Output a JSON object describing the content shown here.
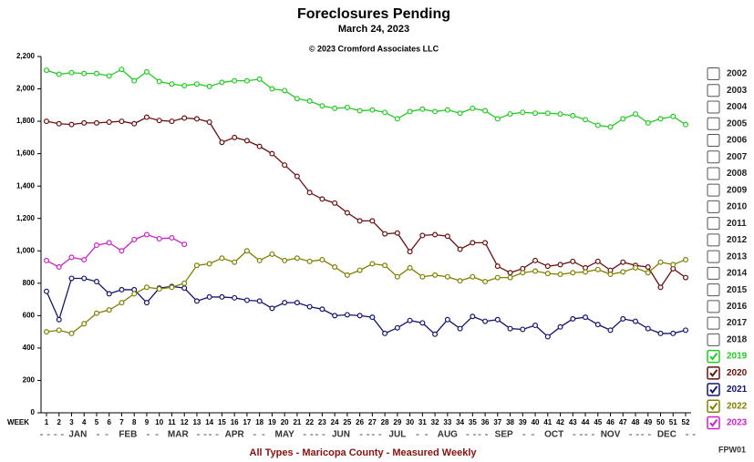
{
  "chart_data": {
    "type": "line",
    "title": "Foreclosures Pending",
    "subtitle": "March 24, 2023",
    "copyright": "© 2023 Cromford Associates LLC",
    "x_label": "WEEK",
    "footer": "All Types - Maricopa County - Measured Weekly",
    "code": "FPW01",
    "months": [
      "JAN",
      "FEB",
      "MAR",
      "APR",
      "MAY",
      "JUN",
      "JUL",
      "AUG",
      "SEP",
      "OCT",
      "NOV",
      "DEC"
    ],
    "x": [
      1,
      2,
      3,
      4,
      5,
      6,
      7,
      8,
      9,
      10,
      11,
      12,
      13,
      14,
      15,
      16,
      17,
      18,
      19,
      20,
      21,
      22,
      23,
      24,
      25,
      26,
      27,
      28,
      29,
      30,
      31,
      32,
      33,
      34,
      35,
      36,
      37,
      38,
      39,
      40,
      41,
      42,
      43,
      44,
      45,
      46,
      47,
      48,
      49,
      50,
      51,
      52
    ],
    "xticks": [
      1,
      2,
      3,
      4,
      5,
      6,
      7,
      8,
      9,
      10,
      11,
      12,
      13,
      14,
      15,
      16,
      17,
      18,
      19,
      20,
      21,
      22,
      23,
      24,
      25,
      26,
      27,
      28,
      29,
      30,
      31,
      32,
      33,
      34,
      35,
      36,
      37,
      38,
      39,
      40,
      41,
      42,
      43,
      44,
      45,
      46,
      47,
      48,
      49,
      50,
      51,
      52
    ],
    "xlim": [
      0.5,
      52
    ],
    "ylim": [
      0,
      2200
    ],
    "yticks": [
      0,
      200,
      400,
      600,
      800,
      {
        "value": 1000,
        "label": "1,000"
      },
      {
        "value": 1200,
        "label": "1,200"
      },
      {
        "value": 1400,
        "label": "1,400"
      },
      {
        "value": 1600,
        "label": "1,600"
      },
      {
        "value": 1800,
        "label": "1,800"
      },
      {
        "value": 2000,
        "label": "2,000"
      },
      {
        "value": 2200,
        "label": "2,200"
      }
    ],
    "grid": false,
    "legend_unchecked": [
      "2002",
      "2003",
      "2004",
      "2005",
      "2006",
      "2007",
      "2008",
      "2009",
      "2010",
      "2011",
      "2012",
      "2013",
      "2014",
      "2015",
      "2016",
      "2017",
      "2018"
    ],
    "series": [
      {
        "name": "2019",
        "color": "#22cc22",
        "values": [
          2115,
          2090,
          2100,
          2095,
          2095,
          2080,
          2120,
          2050,
          2105,
          2045,
          2030,
          2020,
          2030,
          2015,
          2040,
          2050,
          2050,
          2060,
          2000,
          1990,
          1940,
          1925,
          1895,
          1880,
          1885,
          1865,
          1870,
          1855,
          1815,
          1860,
          1875,
          1860,
          1870,
          1850,
          1880,
          1865,
          1815,
          1845,
          1855,
          1850,
          1850,
          1845,
          1835,
          1810,
          1775,
          1765,
          1815,
          1845,
          1790,
          1815,
          1830,
          1780
        ]
      },
      {
        "name": "2020",
        "color": "#6b0f0f",
        "values": [
          1800,
          1785,
          1780,
          1790,
          1790,
          1795,
          1800,
          1785,
          1825,
          1805,
          1800,
          1820,
          1815,
          1795,
          1670,
          1700,
          1680,
          1645,
          1600,
          1530,
          1460,
          1360,
          1320,
          1295,
          1235,
          1185,
          1185,
          1105,
          1110,
          995,
          1095,
          1100,
          1090,
          1010,
          1050,
          1050,
          905,
          865,
          890,
          940,
          905,
          915,
          935,
          895,
          935,
          880,
          930,
          910,
          900,
          775,
          890,
          835
        ]
      },
      {
        "name": "2021",
        "color": "#141470",
        "values": [
          750,
          575,
          830,
          830,
          810,
          735,
          760,
          760,
          680,
          770,
          780,
          770,
          690,
          715,
          715,
          710,
          695,
          690,
          645,
          680,
          680,
          655,
          640,
          600,
          605,
          600,
          590,
          490,
          525,
          570,
          555,
          485,
          575,
          520,
          595,
          565,
          575,
          520,
          515,
          540,
          470,
          530,
          580,
          590,
          545,
          510,
          580,
          565,
          520,
          490,
          490,
          510
        ]
      },
      {
        "name": "2022",
        "color": "#808000",
        "values": [
          500,
          510,
          490,
          550,
          615,
          635,
          680,
          735,
          775,
          765,
          775,
          800,
          910,
          920,
          955,
          930,
          1000,
          940,
          980,
          940,
          955,
          935,
          945,
          900,
          850,
          880,
          920,
          910,
          840,
          895,
          840,
          850,
          840,
          815,
          840,
          810,
          835,
          835,
          865,
          875,
          860,
          855,
          865,
          870,
          885,
          855,
          870,
          895,
          865,
          930,
          915,
          945
        ]
      },
      {
        "name": "2023",
        "color": "#cc22cc",
        "values": [
          940,
          900,
          960,
          945,
          1035,
          1050,
          1000,
          1070,
          1100,
          1075,
          1080,
          1040,
          null,
          null,
          null,
          null,
          null,
          null,
          null,
          null,
          null,
          null,
          null,
          null,
          null,
          null,
          null,
          null,
          null,
          null,
          null,
          null,
          null,
          null,
          null,
          null,
          null,
          null,
          null,
          null,
          null,
          null,
          null,
          null,
          null,
          null,
          null,
          null,
          null,
          null,
          null,
          null
        ]
      }
    ]
  }
}
